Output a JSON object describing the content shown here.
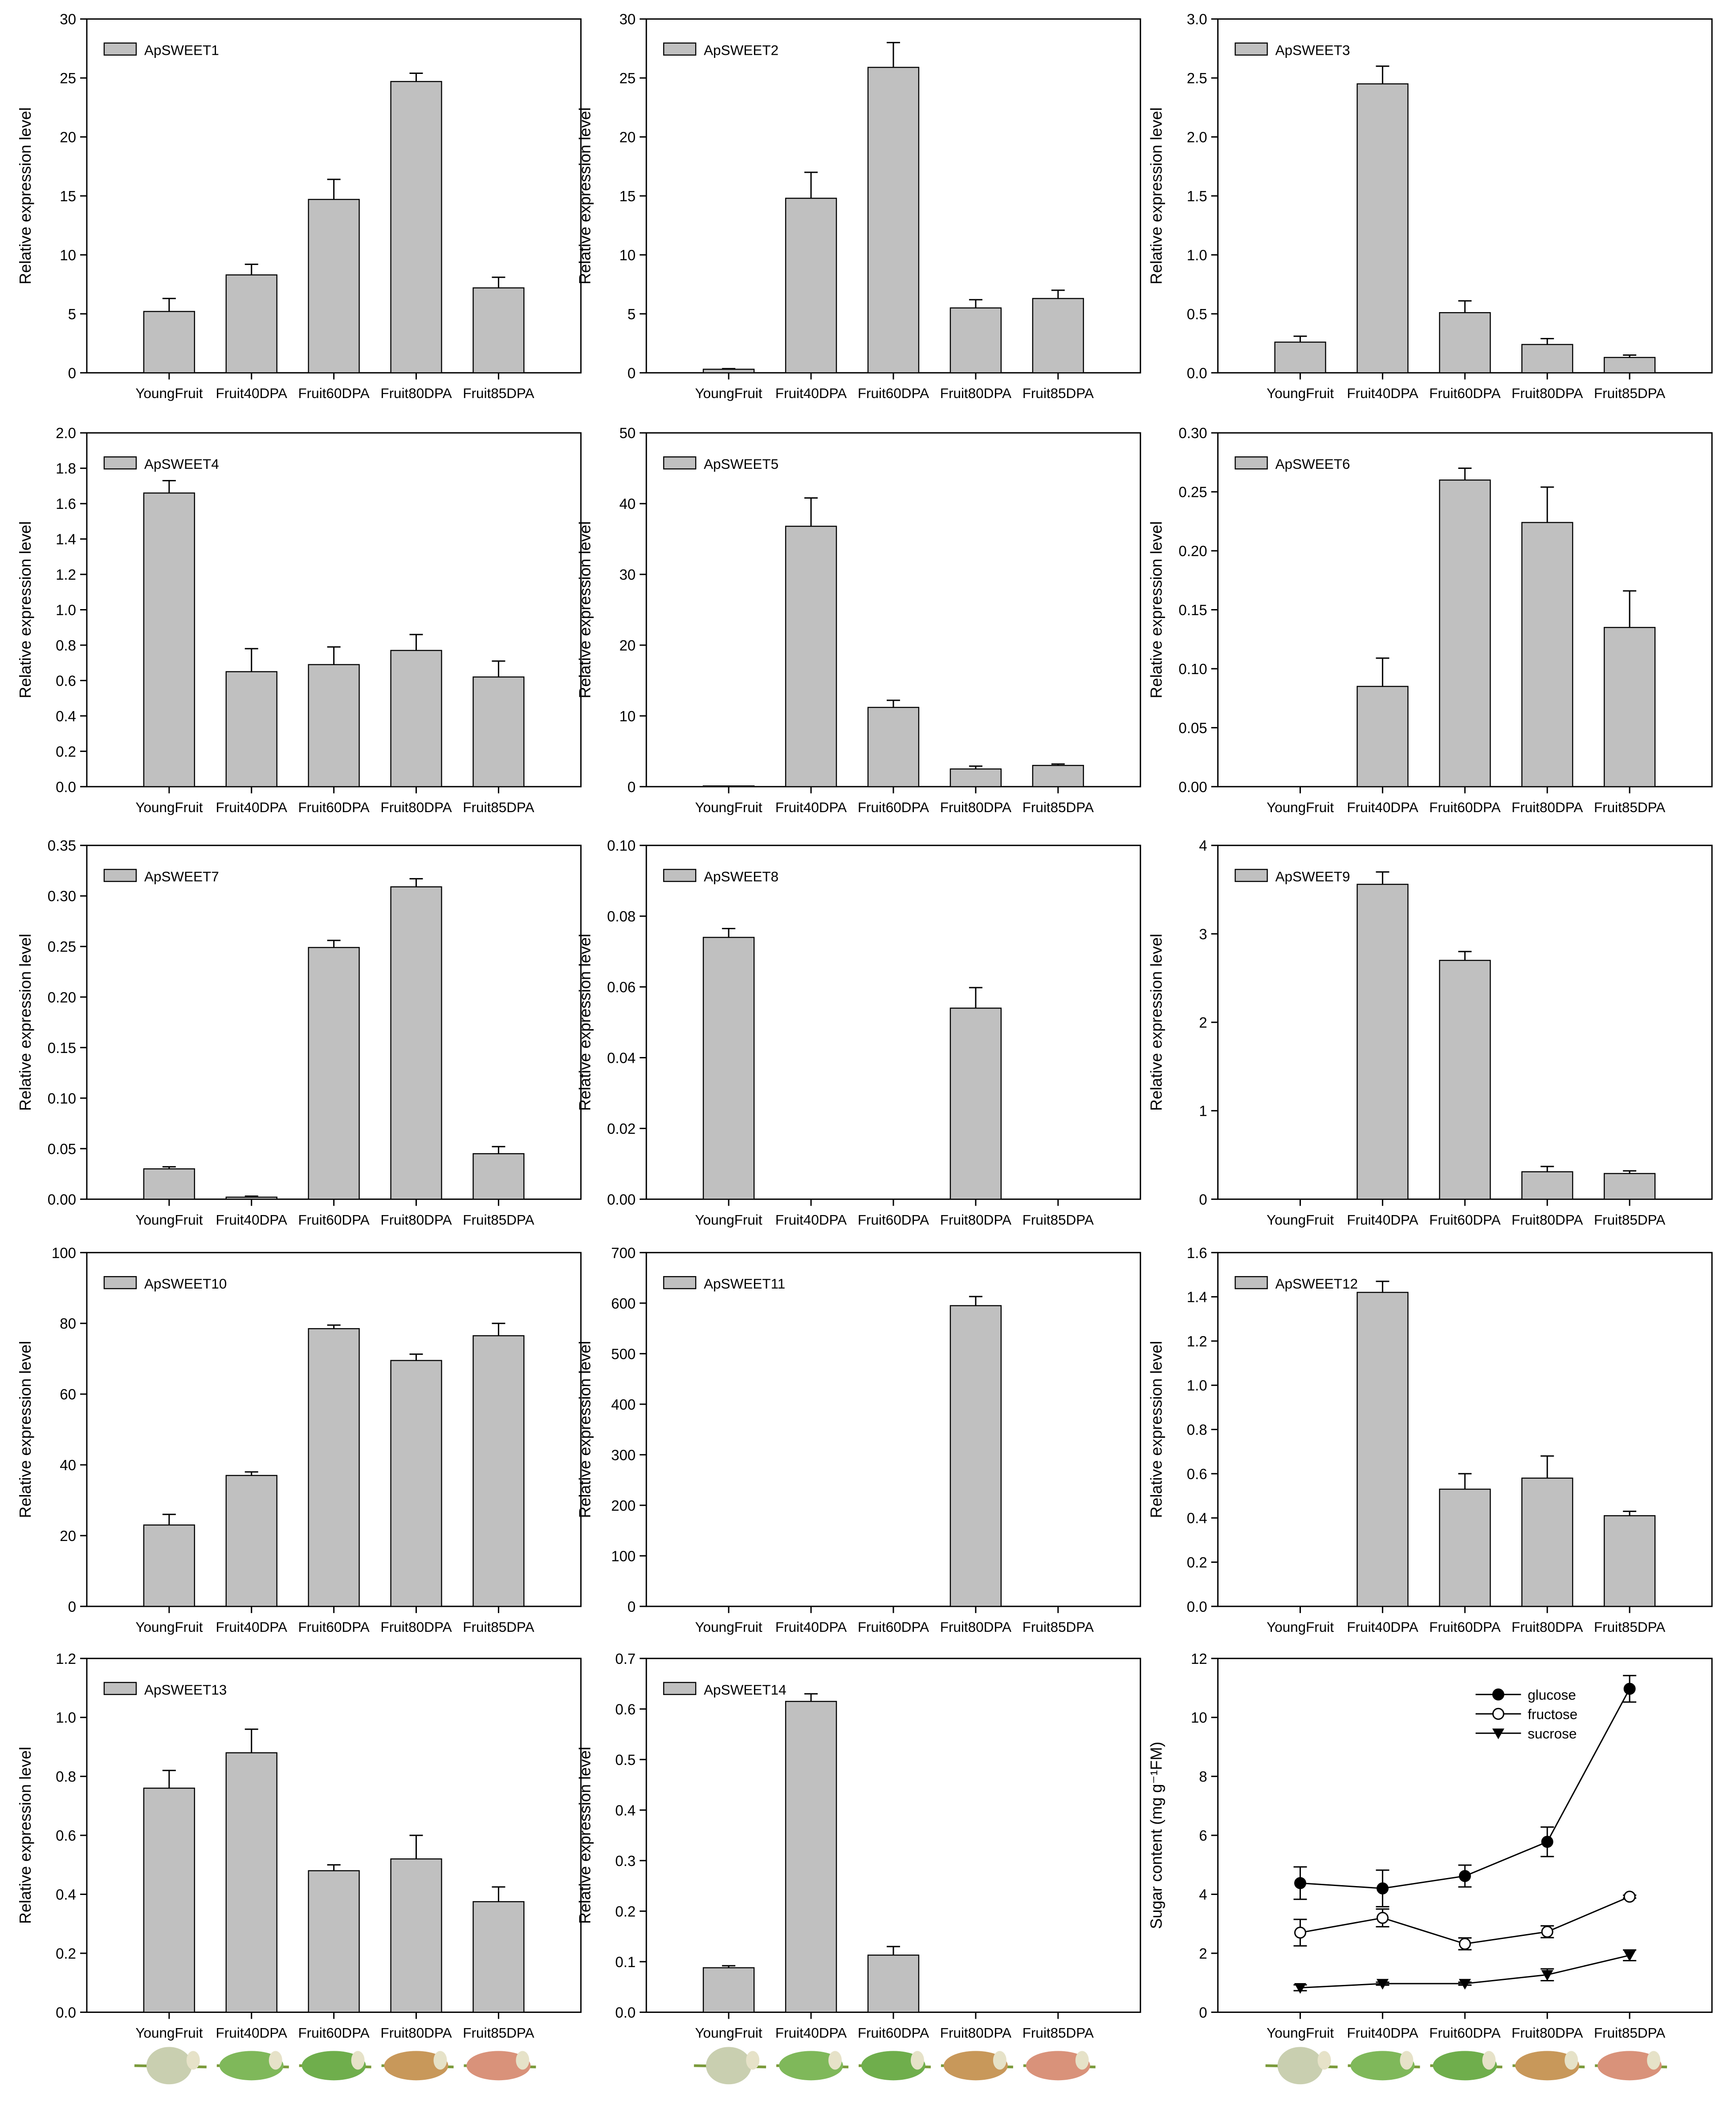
{
  "categories": [
    "YoungFruit",
    "Fruit40DPA",
    "Fruit60DPA",
    "Fruit80DPA",
    "Fruit85DPA"
  ],
  "bar_color": "#c0c0c0",
  "chart_data": [
    {
      "type": "bar",
      "legend": "ApSWEET1",
      "ylabel": "Relative expression level",
      "ylim": [
        0,
        30
      ],
      "yticks": [
        "0",
        "5",
        "10",
        "15",
        "20",
        "25",
        "30"
      ],
      "values": [
        5.2,
        8.3,
        14.7,
        24.7,
        7.2
      ],
      "errors": [
        1.1,
        0.9,
        1.7,
        0.7,
        0.9
      ]
    },
    {
      "type": "bar",
      "legend": "ApSWEET2",
      "ylabel": "Relative expression level",
      "ylim": [
        0,
        30
      ],
      "yticks": [
        "0",
        "5",
        "10",
        "15",
        "20",
        "25",
        "30"
      ],
      "values": [
        0.3,
        14.8,
        25.9,
        5.5,
        6.3
      ],
      "errors": [
        0.05,
        2.2,
        2.1,
        0.7,
        0.7
      ]
    },
    {
      "type": "bar",
      "legend": "ApSWEET3",
      "ylabel": "Relative expression level",
      "ylim": [
        0,
        3
      ],
      "yticks": [
        "0.0",
        "0.5",
        "1.0",
        "1.5",
        "2.0",
        "2.5",
        "3.0"
      ],
      "values": [
        0.26,
        2.45,
        0.51,
        0.24,
        0.13
      ],
      "errors": [
        0.05,
        0.15,
        0.1,
        0.05,
        0.02
      ]
    },
    {
      "type": "bar",
      "legend": "ApSWEET4",
      "ylabel": "Relative expression level",
      "ylim": [
        0,
        2
      ],
      "yticks": [
        "0.0",
        "0.2",
        "0.4",
        "0.6",
        "0.8",
        "1.0",
        "1.2",
        "1.4",
        "1.6",
        "1.8",
        "2.0"
      ],
      "values": [
        1.66,
        0.65,
        0.69,
        0.77,
        0.62
      ],
      "errors": [
        0.07,
        0.13,
        0.1,
        0.09,
        0.09
      ]
    },
    {
      "type": "bar",
      "legend": "ApSWEET5",
      "ylabel": "Relative expression level",
      "ylim": [
        0,
        50
      ],
      "yticks": [
        "0",
        "10",
        "20",
        "30",
        "40",
        "50"
      ],
      "values": [
        0.1,
        36.8,
        11.2,
        2.5,
        3.0
      ],
      "errors": [
        0,
        4,
        1,
        0.4,
        0.2
      ]
    },
    {
      "type": "bar",
      "legend": "ApSWEET6",
      "ylabel": "Relative expression level",
      "ylim": [
        0,
        0.3
      ],
      "yticks": [
        "0.00",
        "0.05",
        "0.10",
        "0.15",
        "0.20",
        "0.25",
        "0.30"
      ],
      "values": [
        0,
        0.085,
        0.26,
        0.224,
        0.135
      ],
      "errors": [
        0,
        0.024,
        0.01,
        0.03,
        0.031
      ]
    },
    {
      "type": "bar",
      "legend": "ApSWEET7",
      "ylabel": "Relative expression level",
      "ylim": [
        0,
        0.35
      ],
      "yticks": [
        "0.00",
        "0.05",
        "0.10",
        "0.15",
        "0.20",
        "0.25",
        "0.30",
        "0.35"
      ],
      "values": [
        0.03,
        0.002,
        0.249,
        0.309,
        0.045
      ],
      "errors": [
        0.002,
        0.001,
        0.007,
        0.008,
        0.007
      ]
    },
    {
      "type": "bar",
      "legend": "ApSWEET8",
      "ylabel": "Relative expression level",
      "ylim": [
        0,
        0.1
      ],
      "yticks": [
        "0.00",
        "0.02",
        "0.04",
        "0.06",
        "0.08",
        "0.10"
      ],
      "values": [
        0.074,
        0,
        0,
        0.054,
        0
      ],
      "errors": [
        0.0025,
        0,
        0,
        0.0058,
        0
      ]
    },
    {
      "type": "bar",
      "legend": "ApSWEET9",
      "ylabel": "Relative expression level",
      "ylim": [
        0,
        4
      ],
      "yticks": [
        "0",
        "1",
        "2",
        "3",
        "4"
      ],
      "values": [
        0,
        3.56,
        2.7,
        0.31,
        0.29
      ],
      "errors": [
        0,
        0.14,
        0.1,
        0.06,
        0.03
      ]
    },
    {
      "type": "bar",
      "legend": "ApSWEET10",
      "ylabel": "Relative expression level",
      "ylim": [
        0,
        100
      ],
      "yticks": [
        "0",
        "20",
        "40",
        "60",
        "80",
        "100"
      ],
      "values": [
        23,
        37,
        78.5,
        69.5,
        76.5
      ],
      "errors": [
        3,
        1,
        1,
        1.8,
        3.5
      ]
    },
    {
      "type": "bar",
      "legend": "ApSWEET11",
      "ylabel": "Relative expression level",
      "ylim": [
        0,
        700
      ],
      "yticks": [
        "0",
        "100",
        "200",
        "300",
        "400",
        "500",
        "600",
        "700"
      ],
      "values": [
        0,
        0,
        0,
        595,
        0
      ],
      "errors": [
        0,
        0,
        0,
        18,
        0
      ]
    },
    {
      "type": "bar",
      "legend": "ApSWEET12",
      "ylabel": "Relative expression level",
      "ylim": [
        0,
        1.6
      ],
      "yticks": [
        "0.0",
        "0.2",
        "0.4",
        "0.6",
        "0.8",
        "1.0",
        "1.2",
        "1.4",
        "1.6"
      ],
      "values": [
        0,
        1.42,
        0.53,
        0.58,
        0.41
      ],
      "errors": [
        0,
        0.05,
        0.07,
        0.1,
        0.02
      ]
    },
    {
      "type": "bar",
      "legend": "ApSWEET13",
      "ylabel": "Relative expression level",
      "ylim": [
        0,
        1.2
      ],
      "yticks": [
        "0.0",
        "0.2",
        "0.4",
        "0.6",
        "0.8",
        "1.0",
        "1.2"
      ],
      "values": [
        0.76,
        0.88,
        0.48,
        0.52,
        0.375
      ],
      "errors": [
        0.06,
        0.08,
        0.02,
        0.08,
        0.05
      ]
    },
    {
      "type": "bar",
      "legend": "ApSWEET14",
      "ylabel": "Relative expression level",
      "ylim": [
        0,
        0.7
      ],
      "yticks": [
        "0.0",
        "0.1",
        "0.2",
        "0.3",
        "0.4",
        "0.5",
        "0.6",
        "0.7"
      ],
      "values": [
        0.088,
        0.615,
        0.113,
        0,
        0
      ],
      "errors": [
        0.004,
        0.015,
        0.017,
        0,
        0
      ]
    },
    {
      "type": "line",
      "ylabel": "Sugar content (mg g⁻¹FM)",
      "ylim": [
        0,
        12
      ],
      "yticks": [
        "0",
        "2",
        "4",
        "6",
        "8",
        "10",
        "12"
      ],
      "legend_position": "top-right",
      "series": [
        {
          "name": "glucose",
          "marker": "filled-circle",
          "values": [
            4.38,
            4.2,
            4.62,
            5.78,
            10.97
          ],
          "errors": [
            0.55,
            0.62,
            0.37,
            0.5,
            0.45
          ]
        },
        {
          "name": "fructose",
          "marker": "open-circle",
          "values": [
            2.7,
            3.2,
            2.32,
            2.73,
            3.92
          ],
          "errors": [
            0.45,
            0.3,
            0.2,
            0.2,
            0.05
          ]
        },
        {
          "name": "sucrose",
          "marker": "filled-triangle-down",
          "values": [
            0.83,
            0.97,
            0.97,
            1.27,
            1.93
          ],
          "errors": [
            0.1,
            0.05,
            0.05,
            0.2,
            0.18
          ]
        }
      ]
    }
  ],
  "fruit_photo_colors": [
    "#c9cfb0",
    "#7fb85a",
    "#6fae4c",
    "#c8985a",
    "#d9927a"
  ]
}
